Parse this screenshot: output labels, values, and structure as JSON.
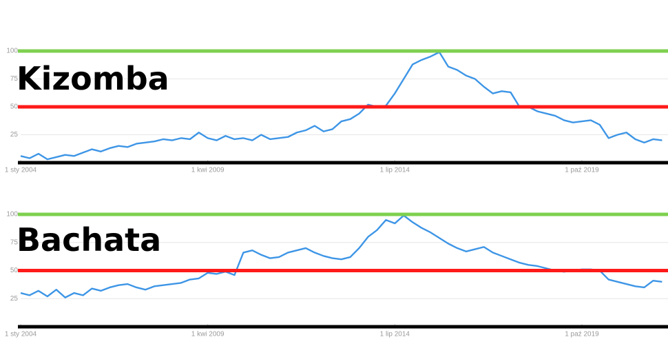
{
  "chart_data": [
    {
      "type": "line",
      "title": "Kizomba",
      "x": [
        0,
        3,
        6,
        9,
        12,
        15,
        18,
        21,
        24,
        27,
        30,
        33,
        36,
        39,
        42,
        45,
        48,
        51,
        54,
        57,
        60,
        63,
        66,
        69,
        72,
        75,
        78,
        81,
        84,
        87,
        90,
        93,
        96,
        99,
        102,
        105,
        108,
        111,
        114,
        117,
        120,
        123,
        126,
        129,
        132,
        135,
        138,
        141,
        144,
        147,
        150,
        153,
        156,
        159,
        162,
        165,
        168,
        171,
        174,
        177,
        180,
        183,
        186,
        189,
        192,
        195,
        198,
        201,
        204,
        207,
        210,
        213,
        216
      ],
      "series": [
        {
          "color": "#3d95e6",
          "values": [
            6,
            4,
            8,
            3,
            5,
            7,
            6,
            9,
            12,
            10,
            13,
            15,
            14,
            17,
            18,
            19,
            21,
            20,
            22,
            21,
            27,
            22,
            20,
            24,
            21,
            22,
            20,
            25,
            21,
            22,
            23,
            27,
            29,
            33,
            28,
            30,
            37,
            39,
            44,
            52,
            50,
            51,
            62,
            75,
            88,
            92,
            95,
            99,
            86,
            83,
            78,
            75,
            68,
            62,
            64,
            63,
            50,
            50,
            46,
            44,
            42,
            38,
            36,
            37,
            38,
            34,
            22,
            25,
            27,
            21,
            18,
            21,
            20
          ]
        }
      ],
      "xlim": [
        0,
        218
      ],
      "ylim": [
        0,
        100
      ],
      "xticks": [
        {
          "value": 0,
          "label": "1 sty 2004"
        },
        {
          "value": 63,
          "label": "1 kwi 2009"
        },
        {
          "value": 126,
          "label": "1 lip 2014"
        },
        {
          "value": 189,
          "label": "1 paź 2019"
        }
      ],
      "yticks": [
        25,
        50,
        75,
        100
      ],
      "grid": true,
      "reference_lines": [
        {
          "value": 100,
          "color": "#7ed04f"
        },
        {
          "value": 50,
          "color": "#ff1a1a"
        },
        {
          "value": 0,
          "color": "#000000"
        }
      ]
    },
    {
      "type": "line",
      "title": "Bachata",
      "x": [
        0,
        3,
        6,
        9,
        12,
        15,
        18,
        21,
        24,
        27,
        30,
        33,
        36,
        39,
        42,
        45,
        48,
        51,
        54,
        57,
        60,
        63,
        66,
        69,
        72,
        75,
        78,
        81,
        84,
        87,
        90,
        93,
        96,
        99,
        102,
        105,
        108,
        111,
        114,
        117,
        120,
        123,
        126,
        129,
        132,
        135,
        138,
        141,
        144,
        147,
        150,
        153,
        156,
        159,
        162,
        165,
        168,
        171,
        174,
        177,
        180,
        183,
        186,
        189,
        192,
        195,
        198,
        201,
        204,
        207,
        210,
        213,
        216
      ],
      "series": [
        {
          "color": "#3d95e6",
          "values": [
            30,
            28,
            32,
            27,
            33,
            26,
            30,
            28,
            34,
            32,
            35,
            37,
            38,
            35,
            33,
            36,
            37,
            38,
            39,
            42,
            43,
            48,
            47,
            49,
            46,
            66,
            68,
            64,
            61,
            62,
            66,
            68,
            70,
            66,
            63,
            61,
            60,
            62,
            70,
            80,
            86,
            95,
            92,
            99,
            93,
            88,
            84,
            79,
            74,
            70,
            67,
            69,
            71,
            66,
            63,
            60,
            57,
            55,
            54,
            52,
            50,
            49,
            50,
            51,
            51,
            50,
            42,
            40,
            38,
            36,
            35,
            41,
            40
          ]
        }
      ],
      "xlim": [
        0,
        218
      ],
      "ylim": [
        0,
        100
      ],
      "xticks": [
        {
          "value": 0,
          "label": "1 sty 2004"
        },
        {
          "value": 63,
          "label": "1 kwi 2009"
        },
        {
          "value": 126,
          "label": "1 lip 2014"
        },
        {
          "value": 189,
          "label": "1 paź 2019"
        }
      ],
      "yticks": [
        25,
        50,
        75,
        100
      ],
      "grid": true,
      "reference_lines": [
        {
          "value": 100,
          "color": "#7ed04f"
        },
        {
          "value": 50,
          "color": "#ff1a1a"
        },
        {
          "value": 0,
          "color": "#000000"
        }
      ]
    }
  ]
}
